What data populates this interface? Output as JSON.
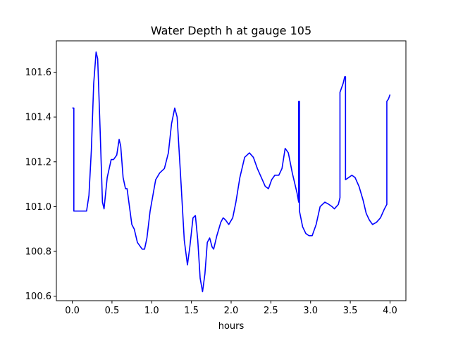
{
  "chart_data": {
    "type": "line",
    "title": "Water Depth h at gauge 105",
    "xlabel": "hours",
    "ylabel": "",
    "xlim": [
      -0.2,
      4.2
    ],
    "ylim": [
      100.58,
      101.74
    ],
    "xticks": [
      0.0,
      0.5,
      1.0,
      1.5,
      2.0,
      2.5,
      3.0,
      3.5,
      4.0
    ],
    "xtick_labels": [
      "0.0",
      "0.5",
      "1.0",
      "1.5",
      "2.0",
      "2.5",
      "3.0",
      "3.5",
      "4.0"
    ],
    "yticks": [
      100.6,
      100.8,
      101.0,
      101.2,
      101.4,
      101.6
    ],
    "ytick_labels": [
      "100.6",
      "100.8",
      "101.0",
      "101.2",
      "101.4",
      "101.6"
    ],
    "grid": false,
    "line_color": "#0000ff",
    "series": [
      {
        "points": [
          [
            0.0,
            101.44
          ],
          [
            0.02,
            101.44
          ],
          [
            0.02,
            100.98
          ],
          [
            0.1,
            100.98
          ],
          [
            0.18,
            100.98
          ],
          [
            0.21,
            101.05
          ],
          [
            0.24,
            101.25
          ],
          [
            0.27,
            101.55
          ],
          [
            0.3,
            101.69
          ],
          [
            0.32,
            101.66
          ],
          [
            0.35,
            101.35
          ],
          [
            0.38,
            101.02
          ],
          [
            0.4,
            100.99
          ],
          [
            0.44,
            101.13
          ],
          [
            0.49,
            101.21
          ],
          [
            0.52,
            101.21
          ],
          [
            0.56,
            101.23
          ],
          [
            0.59,
            101.3
          ],
          [
            0.61,
            101.27
          ],
          [
            0.64,
            101.13
          ],
          [
            0.67,
            101.08
          ],
          [
            0.69,
            101.08
          ],
          [
            0.72,
            101.0
          ],
          [
            0.75,
            100.92
          ],
          [
            0.78,
            100.9
          ],
          [
            0.82,
            100.84
          ],
          [
            0.88,
            100.81
          ],
          [
            0.91,
            100.81
          ],
          [
            0.94,
            100.86
          ],
          [
            0.98,
            100.98
          ],
          [
            1.05,
            101.12
          ],
          [
            1.1,
            101.15
          ],
          [
            1.16,
            101.17
          ],
          [
            1.21,
            101.24
          ],
          [
            1.25,
            101.37
          ],
          [
            1.29,
            101.44
          ],
          [
            1.32,
            101.4
          ],
          [
            1.37,
            101.1
          ],
          [
            1.41,
            100.85
          ],
          [
            1.45,
            100.74
          ],
          [
            1.48,
            100.82
          ],
          [
            1.52,
            100.95
          ],
          [
            1.55,
            100.96
          ],
          [
            1.58,
            100.85
          ],
          [
            1.61,
            100.68
          ],
          [
            1.64,
            100.62
          ],
          [
            1.67,
            100.7
          ],
          [
            1.7,
            100.84
          ],
          [
            1.73,
            100.86
          ],
          [
            1.76,
            100.82
          ],
          [
            1.78,
            100.81
          ],
          [
            1.82,
            100.87
          ],
          [
            1.87,
            100.93
          ],
          [
            1.9,
            100.95
          ],
          [
            1.93,
            100.94
          ],
          [
            1.97,
            100.92
          ],
          [
            2.02,
            100.95
          ],
          [
            2.06,
            101.02
          ],
          [
            2.11,
            101.13
          ],
          [
            2.17,
            101.22
          ],
          [
            2.23,
            101.24
          ],
          [
            2.28,
            101.22
          ],
          [
            2.33,
            101.17
          ],
          [
            2.38,
            101.13
          ],
          [
            2.43,
            101.09
          ],
          [
            2.47,
            101.08
          ],
          [
            2.51,
            101.12
          ],
          [
            2.55,
            101.14
          ],
          [
            2.6,
            101.14
          ],
          [
            2.64,
            101.17
          ],
          [
            2.68,
            101.26
          ],
          [
            2.72,
            101.24
          ],
          [
            2.77,
            101.15
          ],
          [
            2.83,
            101.06
          ],
          [
            2.85,
            101.02
          ],
          [
            2.85,
            101.47
          ],
          [
            2.86,
            101.47
          ],
          [
            2.86,
            100.98
          ],
          [
            2.9,
            100.91
          ],
          [
            2.94,
            100.88
          ],
          [
            2.98,
            100.87
          ],
          [
            3.02,
            100.87
          ],
          [
            3.07,
            100.92
          ],
          [
            3.12,
            101.0
          ],
          [
            3.18,
            101.02
          ],
          [
            3.23,
            101.01
          ],
          [
            3.27,
            101.0
          ],
          [
            3.3,
            100.99
          ],
          [
            3.35,
            101.01
          ],
          [
            3.37,
            101.04
          ],
          [
            3.37,
            101.51
          ],
          [
            3.41,
            101.55
          ],
          [
            3.43,
            101.58
          ],
          [
            3.44,
            101.58
          ],
          [
            3.44,
            101.12
          ],
          [
            3.48,
            101.13
          ],
          [
            3.52,
            101.14
          ],
          [
            3.56,
            101.13
          ],
          [
            3.61,
            101.09
          ],
          [
            3.66,
            101.03
          ],
          [
            3.7,
            100.97
          ],
          [
            3.74,
            100.94
          ],
          [
            3.78,
            100.92
          ],
          [
            3.83,
            100.93
          ],
          [
            3.88,
            100.95
          ],
          [
            3.93,
            100.99
          ],
          [
            3.96,
            101.01
          ],
          [
            3.96,
            101.47
          ],
          [
            3.98,
            101.48
          ],
          [
            4.0,
            101.5
          ]
        ]
      }
    ]
  }
}
